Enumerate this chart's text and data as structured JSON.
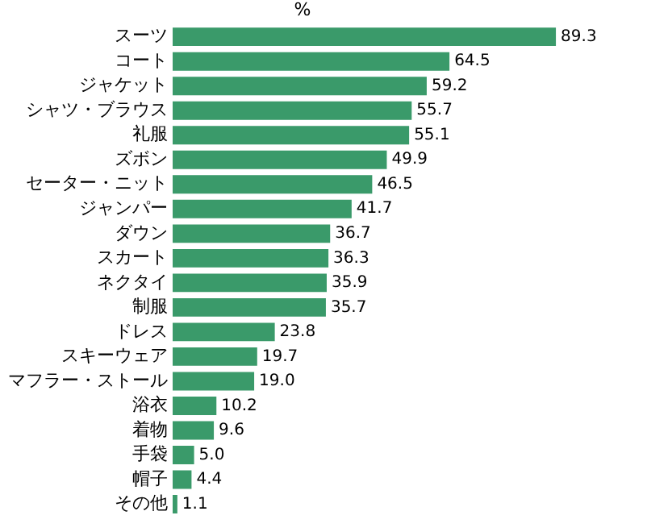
{
  "chart_data": {
    "type": "bar",
    "orientation": "horizontal",
    "title": "%",
    "categories": [
      "スーツ",
      "コート",
      "ジャケット",
      "シャツ・ブラウス",
      "礼服",
      "ズボン",
      "セーター・ニット",
      "ジャンパー",
      "ダウン",
      "スカート",
      "ネクタイ",
      "制服",
      "ドレス",
      "スキーウェア",
      "マフラー・ストール",
      "浴衣",
      "着物",
      "手袋",
      "帽子",
      "その他"
    ],
    "values": [
      89.3,
      64.5,
      59.2,
      55.7,
      55.1,
      49.9,
      46.5,
      41.7,
      36.7,
      36.3,
      35.9,
      35.7,
      23.8,
      19.7,
      19.0,
      10.2,
      9.6,
      5.0,
      4.4,
      1.1
    ],
    "value_labels": [
      "89.3",
      "64.5",
      "59.2",
      "55.7",
      "55.1",
      "49.9",
      "46.5",
      "41.7",
      "36.7",
      "36.3",
      "35.9",
      "35.7",
      "23.8",
      "19.7",
      "19.0",
      "10.2",
      "9.6",
      "5.0",
      "4.4",
      "1.1"
    ],
    "color": "#3a9a6a",
    "tick_labels": "y"
  }
}
